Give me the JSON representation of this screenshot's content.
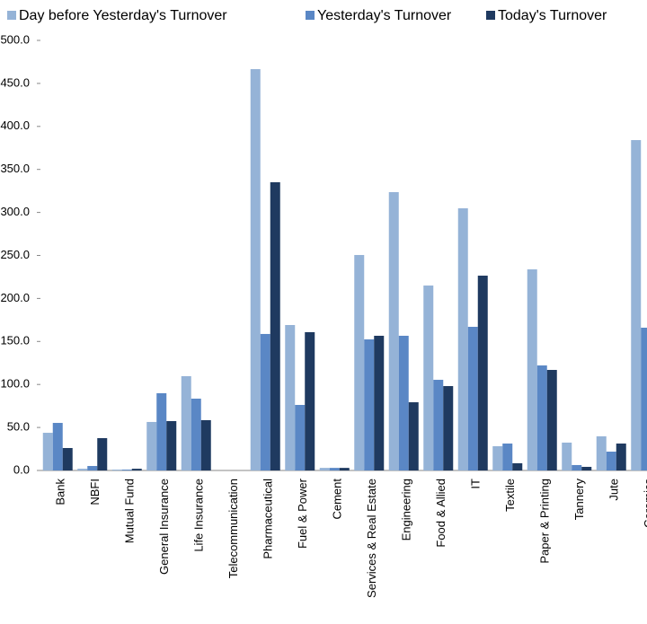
{
  "chart_data": {
    "type": "bar",
    "categories": [
      "Bank",
      "NBFI",
      "Mutual Fund",
      "General Insurance",
      "Life Insurance",
      "Telecommunication",
      "Pharmaceutical",
      "Fuel & Power",
      "Cement",
      "Services & Real Estate",
      "Engineering",
      "Food & Allied",
      "IT",
      "Textile",
      "Paper & Printing",
      "Tannery",
      "Jute",
      "Ceramics"
    ],
    "series": [
      {
        "name": "Day before Yesterday's Turnover",
        "color": "#95b3d7",
        "values": [
          43.8,
          2,
          1,
          56.4,
          109.6,
          0,
          466.6,
          169.1,
          3,
          250.5,
          323.6,
          215,
          304.8,
          28.2,
          233.8,
          32.4,
          39.7,
          384.1
        ]
      },
      {
        "name": "Yesterday's Turnover",
        "color": "#5a87c5",
        "values": [
          55.3,
          5.2,
          1,
          89.8,
          83.5,
          0,
          158.7,
          76.2,
          3,
          152.4,
          156.6,
          105.4,
          167,
          31.3,
          122.1,
          6.3,
          21.9,
          166
        ]
      },
      {
        "name": "Today's Turnover",
        "color": "#1f3a60",
        "values": [
          26.1,
          37.6,
          2,
          57.4,
          58.5,
          0,
          335.1,
          160.8,
          3,
          156.6,
          79.3,
          98.1,
          226.5,
          8.4,
          116.9,
          4.2,
          31.3,
          null
        ]
      }
    ],
    "ylim": [
      0,
      500
    ],
    "yticks": [
      {
        "value": 0,
        "label": "0.0"
      },
      {
        "value": 50,
        "label": "50.0"
      },
      {
        "value": 100,
        "label": "100.0"
      },
      {
        "value": 150,
        "label": "150.0"
      },
      {
        "value": 200,
        "label": "200.0"
      },
      {
        "value": 250,
        "label": "250.0"
      },
      {
        "value": 300,
        "label": "300.0"
      },
      {
        "value": 350,
        "label": "350.0"
      },
      {
        "value": 400,
        "label": "400.0"
      },
      {
        "value": 450,
        "label": "450.0"
      },
      {
        "value": 500,
        "label": "500.0"
      }
    ],
    "grid": false,
    "legend": "top"
  }
}
